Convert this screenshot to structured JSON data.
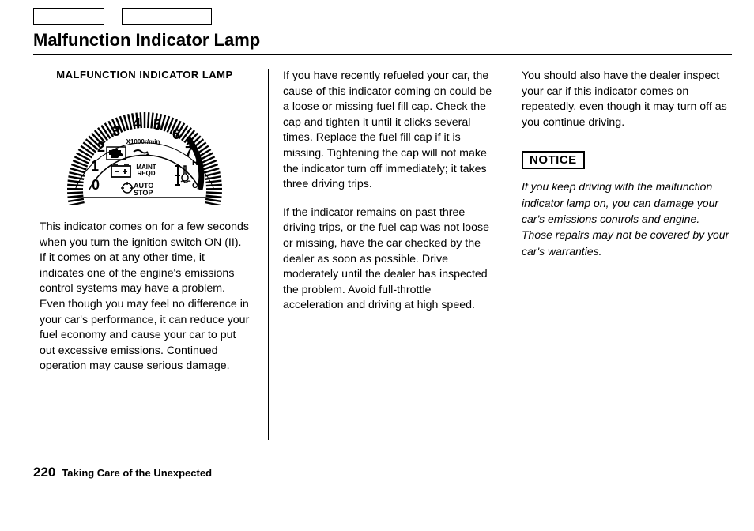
{
  "page_title": "Malfunction Indicator Lamp",
  "gauge_label": "MALFUNCTION INDICATOR LAMP",
  "gauge": {
    "numbers": [
      "0",
      "1",
      "2",
      "3",
      "4",
      "5",
      "6",
      "7"
    ],
    "unit_line": "X1000r/min",
    "auto_stop": "AUTO\nSTOP",
    "maint_reqd": "MAINT\nREQD",
    "temp_c": "C",
    "temp_h": "H"
  },
  "col1_p1": "This indicator comes on for a few seconds when you turn the ignition switch ON (II). If it comes on at any other time, it indicates one of the engine's emissions control systems may have a problem. Even though you may feel no difference in your car's performance, it can reduce your fuel economy and cause your car to put out excessive emissions. Continued operation may cause serious damage.",
  "col2_p1": "If you have recently refueled your car, the cause of this indicator coming on could be a loose or missing fuel fill cap. Check the cap and tighten it until it clicks several times. Replace the fuel fill cap if it is missing. Tightening the cap will not make the indicator turn off immediately; it takes three driving trips.",
  "col2_p2": "If the indicator remains on past three driving trips, or the fuel cap was not loose or missing, have the car checked by the dealer as soon as possible. Drive moderately until the dealer has inspected the problem. Avoid full-throttle acceleration and driving at high speed.",
  "col3_p1": "You should also have the dealer inspect your car if this indicator comes on repeatedly, even though it may turn off as you continue driving.",
  "notice_label": "NOTICE",
  "notice_text": "If you keep driving with the malfunction indicator lamp on, you can damage your car's emissions controls and engine. Those repairs may not be covered by your car's warranties.",
  "page_number": "220",
  "chapter": "Taking Care of the Unexpected"
}
